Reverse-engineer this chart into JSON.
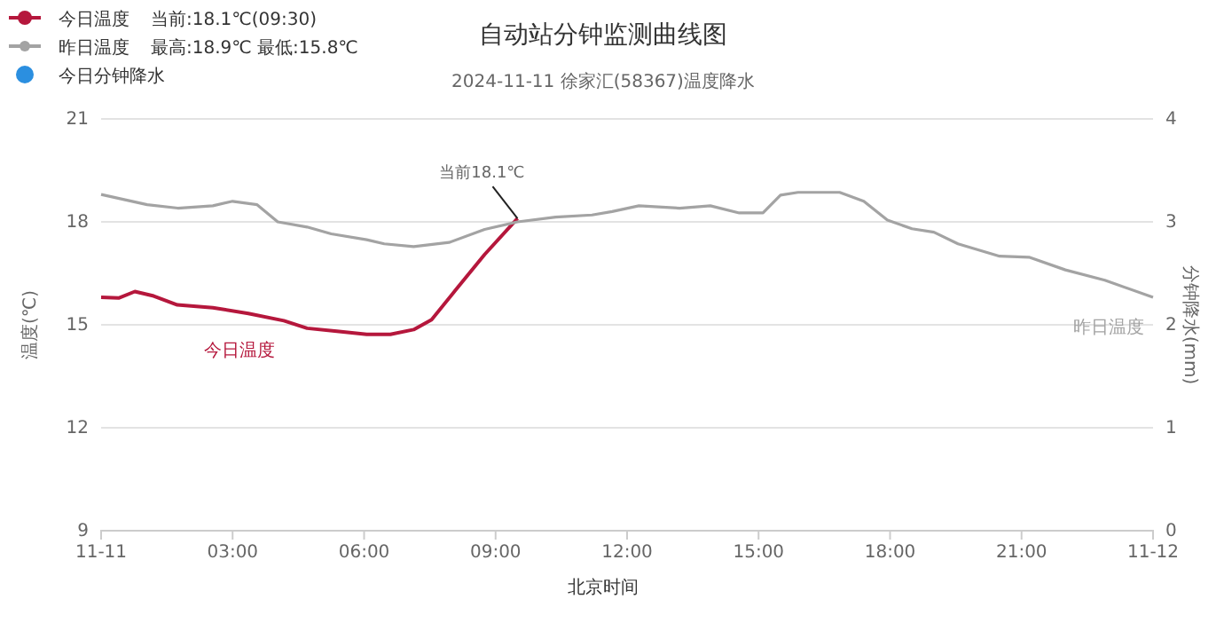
{
  "chart_data": {
    "type": "line",
    "title": "自动站分钟监测曲线图",
    "subtitle": "2024-11-11 徐家汇(58367)温度降水",
    "xlabel": "北京时间",
    "ylabel": "温度(℃)",
    "y2label": "分钟降水(mm)",
    "annotations": [
      "当前:18.1℃(09:30)",
      "最高:18.9℃ 最低:15.8℃",
      {
        "text": "当前18.1℃",
        "x": 9.5,
        "y": 18.1
      }
    ],
    "xlim": [
      0,
      24
    ],
    "xticks": [
      {
        "value": 0,
        "label": "11-11"
      },
      {
        "value": 3,
        "label": "03:00"
      },
      {
        "value": 6,
        "label": "06:00"
      },
      {
        "value": 9,
        "label": "09:00"
      },
      {
        "value": 12,
        "label": "12:00"
      },
      {
        "value": 15,
        "label": "15:00"
      },
      {
        "value": 18,
        "label": "18:00"
      },
      {
        "value": 21,
        "label": "21:00"
      },
      {
        "value": 24,
        "label": "11-12"
      }
    ],
    "ylim": [
      9,
      21
    ],
    "yticks": [
      9,
      12,
      15,
      18,
      21
    ],
    "y2lim": [
      0,
      4
    ],
    "y2ticks": [
      0,
      1,
      2,
      3,
      4
    ],
    "grid": "y",
    "legend": "top left",
    "line_style": "solid",
    "marker": "none",
    "series": [
      {
        "name": "今日温度",
        "color": "#b5173c",
        "x": [
          0,
          0.4,
          0.77,
          1.2,
          1.74,
          2.55,
          3.36,
          4.17,
          4.7,
          5.38,
          6.06,
          6.6,
          7.13,
          7.54,
          8.08,
          8.75,
          9.5
        ],
        "values": [
          15.8,
          15.78,
          15.97,
          15.84,
          15.58,
          15.5,
          15.33,
          15.12,
          14.9,
          14.81,
          14.72,
          14.72,
          14.86,
          15.15,
          16.0,
          17.05,
          18.1
        ]
      },
      {
        "name": "昨日温度",
        "color": "#a3a3a3",
        "x": [
          0,
          1.05,
          1.75,
          2.55,
          3.0,
          3.56,
          4.03,
          4.7,
          5.25,
          6.06,
          6.46,
          7.13,
          7.94,
          8.75,
          9.5,
          10.37,
          11.2,
          11.66,
          12.27,
          13.2,
          13.9,
          14.56,
          15.1,
          15.5,
          15.9,
          16.85,
          17.4,
          17.94,
          18.5,
          19.0,
          19.55,
          20.5,
          21.17,
          22.0,
          22.9,
          24.0
        ],
        "values": [
          18.8,
          18.5,
          18.4,
          18.47,
          18.6,
          18.5,
          18.0,
          17.85,
          17.65,
          17.48,
          17.36,
          17.28,
          17.4,
          17.78,
          18.0,
          18.14,
          18.2,
          18.3,
          18.47,
          18.4,
          18.47,
          18.26,
          18.26,
          18.78,
          18.86,
          18.86,
          18.6,
          18.05,
          17.8,
          17.7,
          17.36,
          17.0,
          16.97,
          16.6,
          16.3,
          15.8
        ]
      },
      {
        "name": "今日分钟降水",
        "color": "#2b8fe0",
        "type": "bar"
      }
    ]
  }
}
